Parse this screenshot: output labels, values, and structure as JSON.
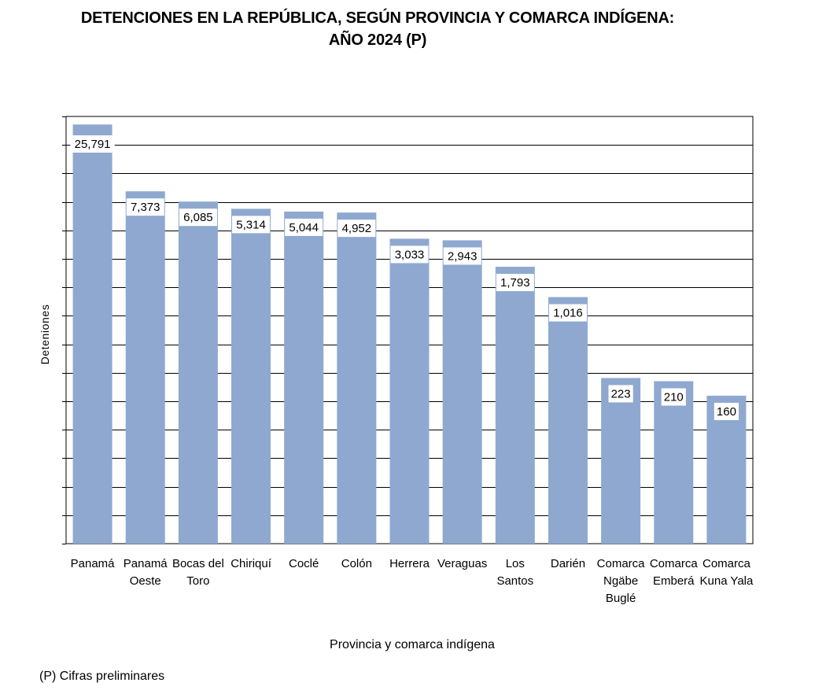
{
  "chart_data": {
    "type": "bar",
    "title": "DETENCIONES EN LA REPÚBLICA, SEGÚN PROVINCIA Y COMARCA INDÍGENA:",
    "subtitle": "AÑO 2024 (P)",
    "xlabel": "Provincia y comarca indígena",
    "ylabel": "Deteniones",
    "categories": [
      "Panamá",
      "Panamá Oeste",
      "Bocas del Toro",
      "Chiriquí",
      "Coclé",
      "Colón",
      "Herrera",
      "Veraguas",
      "Los Santos",
      "Darién",
      "Comarca Ngäbe Buglé",
      "Comarca Emberá",
      "Comarca Kuna Yala"
    ],
    "category_lines": [
      [
        "Panamá"
      ],
      [
        "Panamá",
        "Oeste"
      ],
      [
        "Bocas del",
        "Toro"
      ],
      [
        "Chiriquí"
      ],
      [
        "Coclé"
      ],
      [
        "Colón"
      ],
      [
        "Herrera"
      ],
      [
        "Veraguas"
      ],
      [
        "Los",
        "Santos"
      ],
      [
        "Darién"
      ],
      [
        "Comarca",
        "Ngäbe",
        "Buglé"
      ],
      [
        "Comarca",
        "Emberá"
      ],
      [
        "Comarca",
        "Kuna Yala"
      ]
    ],
    "values": [
      25791,
      7373,
      6085,
      5314,
      5044,
      4952,
      3033,
      2943,
      1793,
      1016,
      223,
      210,
      160
    ],
    "value_labels": [
      "25,791",
      "7,373",
      "6,085",
      "5,314",
      "5,044",
      "4,952",
      "3,033",
      "2,943",
      "1,793",
      "1,016",
      "223",
      "210",
      "160"
    ],
    "scale": "log",
    "ylim": [
      10,
      30000
    ],
    "grid": true,
    "gridline_count": 15,
    "bar_color": "#8FA8D0",
    "gridline_color": "#000000"
  },
  "footnote": "(P) Cifras preliminares"
}
